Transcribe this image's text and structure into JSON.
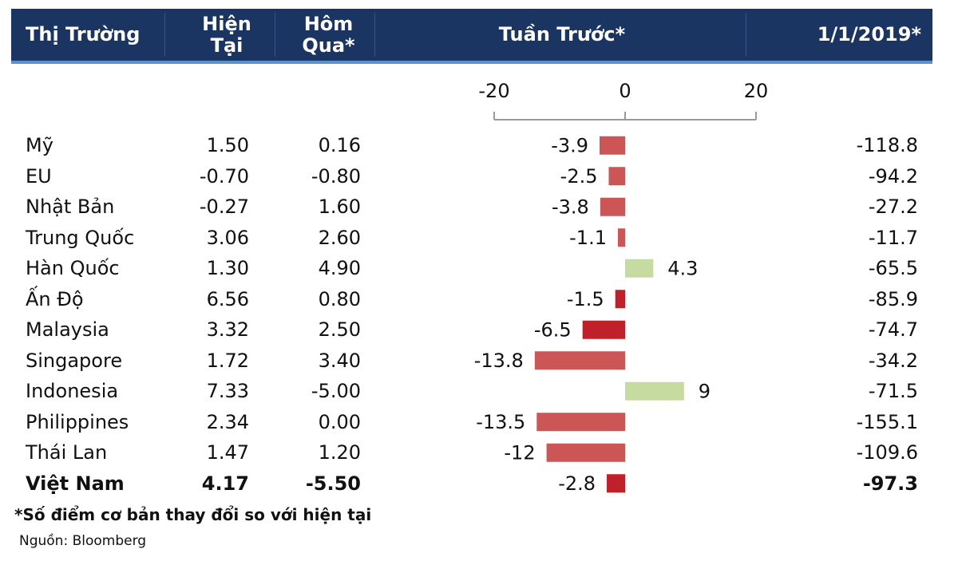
{
  "header": {
    "market": "Thị Trường",
    "now_line1": "Hiện",
    "now_line2": "Tại",
    "yest_line1": "Hôm",
    "yest_line2": "Qua*",
    "week": "Tuần Trước*",
    "ytd": "1/1/2019*"
  },
  "rows": [
    {
      "market": "Mỹ",
      "now": "1.50",
      "yest": "0.16",
      "ytd": "-118.8"
    },
    {
      "market": "EU",
      "now": "-0.70",
      "yest": "-0.80",
      "ytd": "-94.2"
    },
    {
      "market": "Nhật Bản",
      "now": "-0.27",
      "yest": "1.60",
      "ytd": "-27.2"
    },
    {
      "market": "Trung Quốc",
      "now": "3.06",
      "yest": "2.60",
      "ytd": "-11.7"
    },
    {
      "market": "Hàn Quốc",
      "now": "1.30",
      "yest": "4.90",
      "ytd": "-65.5"
    },
    {
      "market": "Ấn Độ",
      "now": "6.56",
      "yest": "0.80",
      "ytd": "-85.9"
    },
    {
      "market": "Malaysia",
      "now": "3.32",
      "yest": "2.50",
      "ytd": "-74.7"
    },
    {
      "market": "Singapore",
      "now": "1.72",
      "yest": "3.40",
      "ytd": "-34.2"
    },
    {
      "market": "Indonesia",
      "now": "7.33",
      "yest": "-5.00",
      "ytd": "-71.5"
    },
    {
      "market": "Philippines",
      "now": "2.34",
      "yest": "0.00",
      "ytd": "-155.1"
    },
    {
      "market": "Thái Lan",
      "now": "1.47",
      "yest": "1.20",
      "ytd": "-109.6"
    },
    {
      "market": "Việt Nam",
      "now": "4.17",
      "yest": "-5.50",
      "ytd": "-97.3"
    }
  ],
  "chart_data": {
    "type": "bar",
    "orientation": "horizontal",
    "title": "Tuần Trước*",
    "categories": [
      "Mỹ",
      "EU",
      "Nhật Bản",
      "Trung Quốc",
      "Hàn Quốc",
      "Ấn Độ",
      "Malaysia",
      "Singapore",
      "Indonesia",
      "Philippines",
      "Thái Lan",
      "Việt Nam"
    ],
    "values": [
      -3.9,
      -2.5,
      -3.8,
      -1.1,
      4.3,
      -1.5,
      -6.5,
      -13.8,
      9,
      -13.5,
      -12,
      -2.8
    ],
    "value_labels": [
      "-3.9",
      "-2.5",
      "-3.8",
      "-1.1",
      "4.3",
      "-1.5",
      "-6.5",
      "-13.8",
      "9",
      "-13.5",
      "-12",
      "-2.8"
    ],
    "xlim": [
      -20,
      20
    ],
    "ticks": [
      "-20",
      "0",
      "20"
    ],
    "colors": {
      "negative": "#cc5555",
      "negative_dark": "#c0202a",
      "positive": "#c5dba0"
    },
    "dark_categories": [
      "Ấn Độ",
      "Malaysia",
      "Việt Nam"
    ]
  },
  "footnote": "*Số điểm cơ bản thay đổi so với hiện tại",
  "source": "Nguồn: Bloomberg"
}
